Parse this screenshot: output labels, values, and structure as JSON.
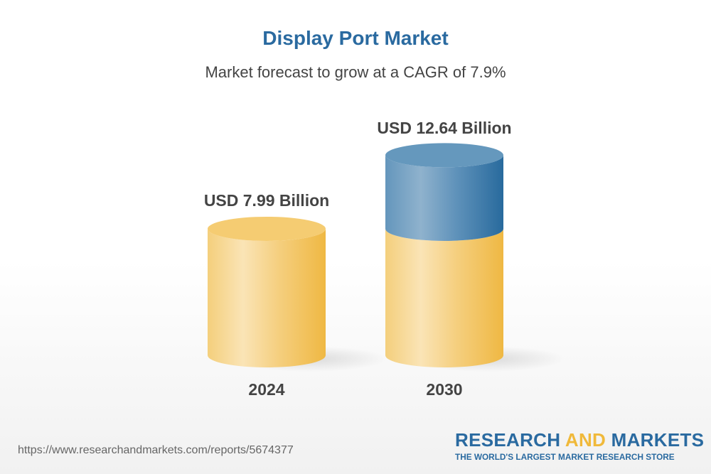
{
  "chart_data": {
    "type": "bar",
    "style": "3d-cylinder",
    "title": "Display Port Market",
    "subtitle": "Market forecast to grow at a CAGR of 7.9%",
    "categories": [
      "2024",
      "2030"
    ],
    "values": [
      7.99,
      12.64
    ],
    "data_labels": [
      "USD 7.99 Billion",
      "USD 12.64 Billion"
    ],
    "unit": "USD Billion",
    "colors": {
      "base": "#f3c65a",
      "growth": "#2d6ca0",
      "title": "#2a6aa0",
      "text": "#444444"
    },
    "grid": false,
    "legend": "none"
  },
  "footer": {
    "url": "https://www.researchandmarkets.com/reports/5674377",
    "logo_part1": "RESEARCH ",
    "logo_part2": "AND",
    "logo_part3": " MARKETS",
    "tagline": "THE WORLD'S LARGEST MARKET RESEARCH STORE"
  }
}
